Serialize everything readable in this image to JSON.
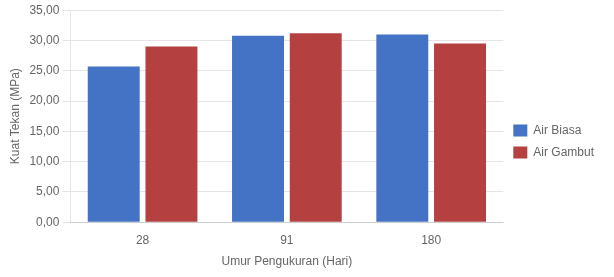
{
  "chart_data": {
    "type": "bar",
    "categories": [
      "28",
      "91",
      "180"
    ],
    "series": [
      {
        "name": "Air Biasa",
        "color": "#4472C4",
        "values": [
          25.7,
          30.8,
          31.0
        ]
      },
      {
        "name": "Air Gambut",
        "color": "#B54040",
        "values": [
          29.0,
          31.2,
          29.5
        ]
      }
    ],
    "xlabel": "Umur Pengukuran (Hari)",
    "ylabel": "Kuat Tekan (MPa)",
    "ylim": [
      0,
      35
    ],
    "yticks": [
      {
        "value": 0,
        "label": "0,00"
      },
      {
        "value": 5,
        "label": "5,00"
      },
      {
        "value": 10,
        "label": "10,00"
      },
      {
        "value": 15,
        "label": "15,00"
      },
      {
        "value": 20,
        "label": "20,00"
      },
      {
        "value": 25,
        "label": "25,00"
      },
      {
        "value": 30,
        "label": "30,00"
      },
      {
        "value": 35,
        "label": "35,00"
      }
    ],
    "grid": true,
    "legend": "right"
  }
}
